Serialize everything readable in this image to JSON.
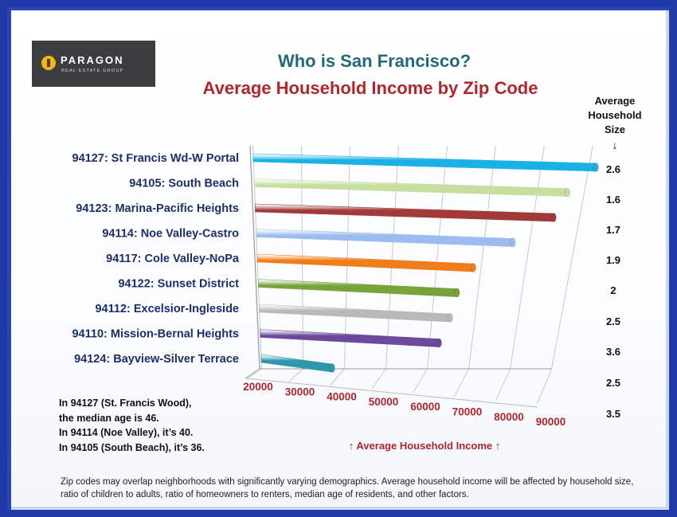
{
  "logo": {
    "name": "PARAGON",
    "sub": "REAL ESTATE GROUP"
  },
  "title": "Who is San Francisco?",
  "subtitle": "Average Household Income by Zip Code",
  "household_size": {
    "header": [
      "Average",
      "Household",
      "Size"
    ],
    "arrow": "↓",
    "values": [
      "2.6",
      "1.6",
      "1.7",
      "1.9",
      "2",
      "2.5",
      "3.6",
      "2.5",
      "3.5"
    ]
  },
  "notes": [
    "In 94127 (St. Francis Wood),",
    "the median age is 46.",
    "In 94114 (Noe Valley), it’s 40.",
    "In 94105 (South Beach), it’s 36."
  ],
  "footer": "Zip codes may overlap neighborhoods with significantly varying demographics. Average household income will be affected by household size, ratio of children to adults, ratio of homeowners to renters, median age of residents, and other factors.",
  "chart_data": {
    "type": "bar",
    "orientation": "horizontal",
    "xlabel": "↑ Average Household Income ↑",
    "xlim": [
      20000,
      90000
    ],
    "ticks": [
      20000,
      30000,
      40000,
      50000,
      60000,
      70000,
      80000,
      90000
    ],
    "categories": [
      "94127: St Francis Wd-W Portal",
      "94105: South Beach",
      "94123: Marina-Pacific Heights",
      "94114: Noe Valley-Castro",
      "94117: Cole Valley-NoPa",
      "94122: Sunset District",
      "94112: Excelsior-Ingleside",
      "94110: Mission-Bernal Heights",
      "94124: Bayview-Silver Terrace"
    ],
    "values": [
      91000,
      86000,
      84000,
      76000,
      68000,
      65000,
      64000,
      62000,
      37000
    ],
    "colors": [
      "#1ab2e6",
      "#c6dea0",
      "#a23a3a",
      "#9bbcee",
      "#ef7d1a",
      "#78a33a",
      "#b9b9b9",
      "#6b4a9c",
      "#2e97ab"
    ],
    "grid": true
  }
}
